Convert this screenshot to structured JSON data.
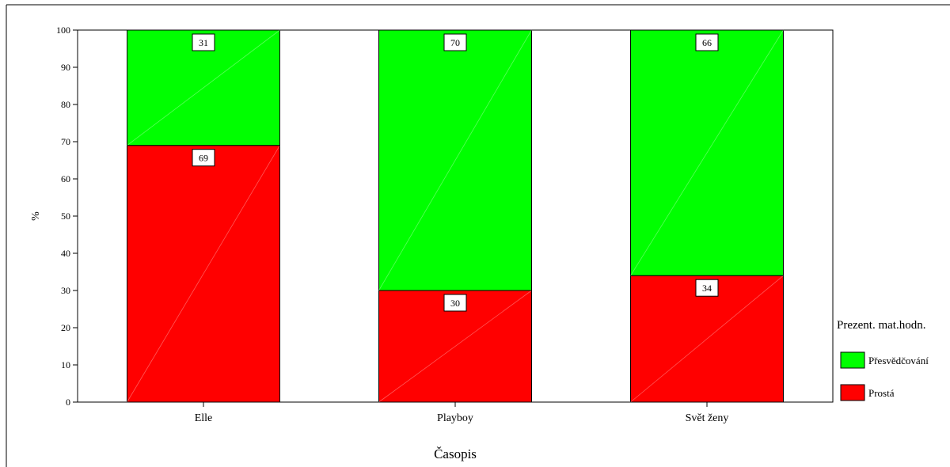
{
  "chart_data": {
    "type": "bar",
    "stacked": true,
    "categories": [
      "Elle",
      "Playboy",
      "Svět ženy"
    ],
    "series": [
      {
        "name": "Prostá",
        "values": [
          69,
          30,
          34
        ],
        "color": "#ff0000"
      },
      {
        "name": "Přesvědčování",
        "values": [
          31,
          70,
          66
        ],
        "color": "#00ff00"
      }
    ],
    "xlabel": "Časopis",
    "ylabel": "%",
    "ylim": [
      0,
      100
    ],
    "yticks": [
      0,
      10,
      20,
      30,
      40,
      50,
      60,
      70,
      80,
      90,
      100
    ],
    "legend": {
      "title": "Prezent. mat.hodn.",
      "position": "right",
      "order": [
        "Přesvědčování",
        "Prostá"
      ]
    },
    "grid": false
  }
}
